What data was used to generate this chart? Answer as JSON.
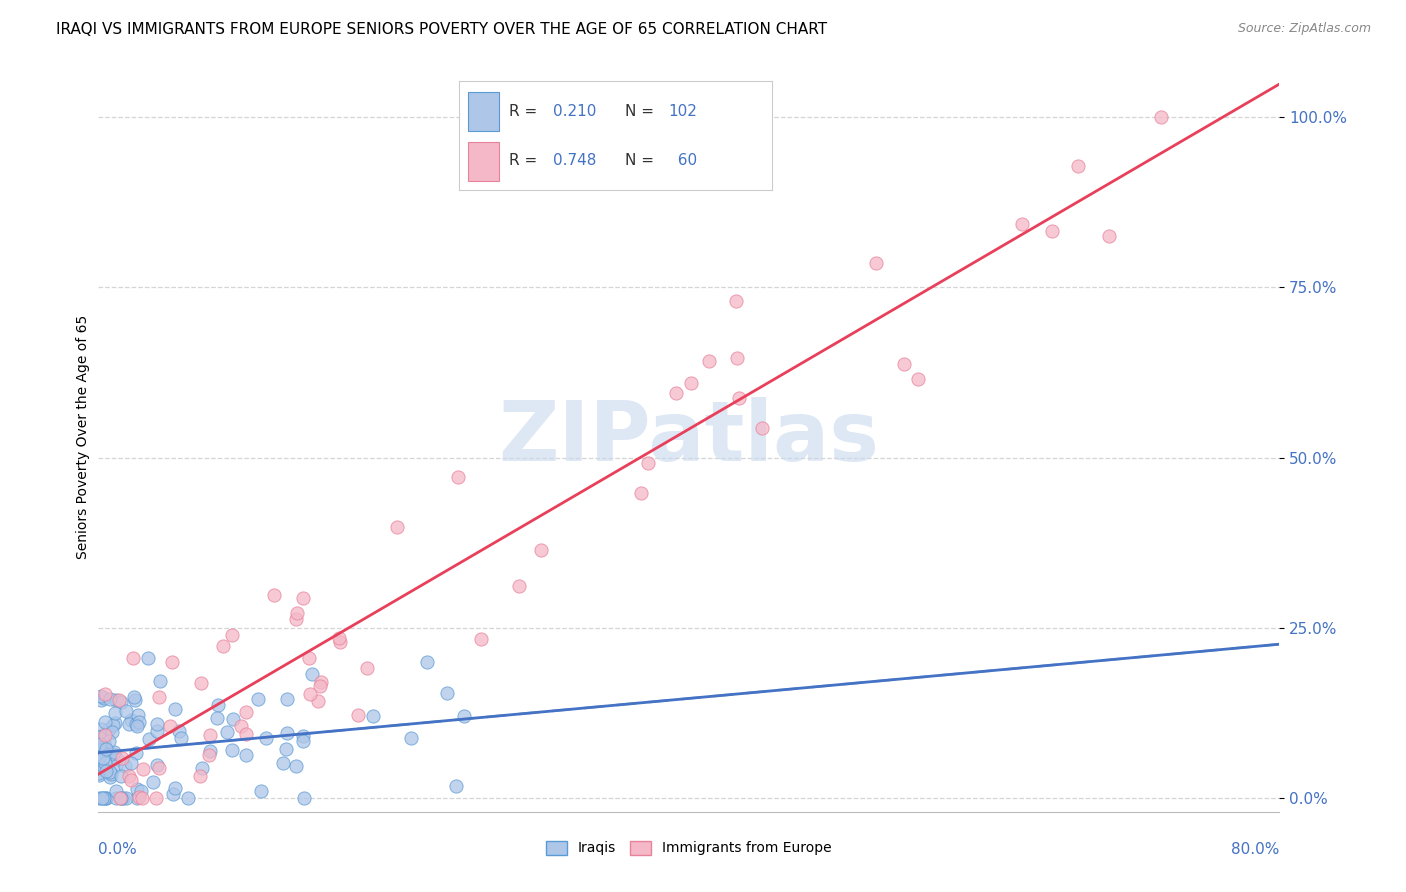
{
  "title": "IRAQI VS IMMIGRANTS FROM EUROPE SENIORS POVERTY OVER THE AGE OF 65 CORRELATION CHART",
  "source": "Source: ZipAtlas.com",
  "ylabel": "Seniors Poverty Over the Age of 65",
  "ytick_labels": [
    "0.0%",
    "25.0%",
    "50.0%",
    "75.0%",
    "100.0%"
  ],
  "ytick_values": [
    0.0,
    0.25,
    0.5,
    0.75,
    1.0
  ],
  "xlim": [
    0.0,
    0.8
  ],
  "ylim": [
    -0.02,
    1.08
  ],
  "iraqi_R": 0.21,
  "iraqi_N": 102,
  "europe_R": 0.748,
  "europe_N": 60,
  "iraqi_color": "#aec6e8",
  "europe_color": "#f4b8c8",
  "iraqi_edge_color": "#5b9bd5",
  "europe_edge_color": "#e8829a",
  "iraqi_line_color": "#4472c4",
  "europe_line_color": "#e8405a",
  "dashed_line_color": "#9ab5d5",
  "grid_color": "#d5d5d5",
  "tick_color": "#4472c4",
  "watermark_color": "#c8d8ee",
  "watermark_text": "ZIPatlas",
  "title_fontsize": 11,
  "label_fontsize": 10,
  "tick_fontsize": 11,
  "legend_fontsize": 11
}
